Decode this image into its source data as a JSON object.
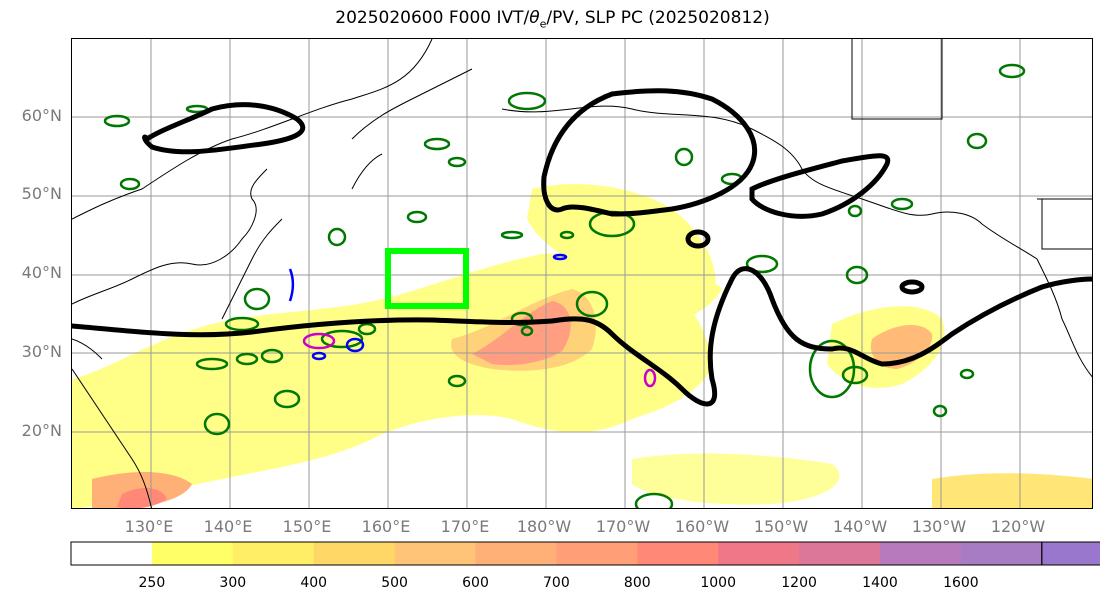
{
  "title": "2025020600 F000 IVT/θe/PV, SLP PC (2025020812)",
  "title_parts": {
    "prefix": "2025020600 F000 IVT/",
    "theta": "θ",
    "sub": "e",
    "suffix": "/PV, SLP PC (2025020812)"
  },
  "lat_labels": [
    "60°N",
    "50°N",
    "40°N",
    "30°N",
    "20°N"
  ],
  "lon_labels": [
    "130°E",
    "140°E",
    "150°E",
    "160°E",
    "170°E",
    "180°W",
    "170°W",
    "160°W",
    "150°W",
    "140°W",
    "130°W",
    "120°W"
  ],
  "colorbar": {
    "levels": [
      "250",
      "300",
      "400",
      "500",
      "600",
      "700",
      "800",
      "1000",
      "1200",
      "1400",
      "1600"
    ],
    "colors": [
      "#ffffff",
      "#ffff66",
      "#ffee66",
      "#ffd766",
      "#ffc477",
      "#ffb077",
      "#ff9e77",
      "#ff8877",
      "#ee7788",
      "#dd7799",
      "#b77bbb",
      "#a87cc4",
      "#9977cc"
    ]
  },
  "colors": {
    "slp_contour": "#000000",
    "target_box": "#00ff00",
    "pv_contour": "#007700",
    "neg_contour": "#0000ff",
    "magenta_contour": "#cc00cc",
    "grid": "#999999",
    "coast": "#000000"
  }
}
